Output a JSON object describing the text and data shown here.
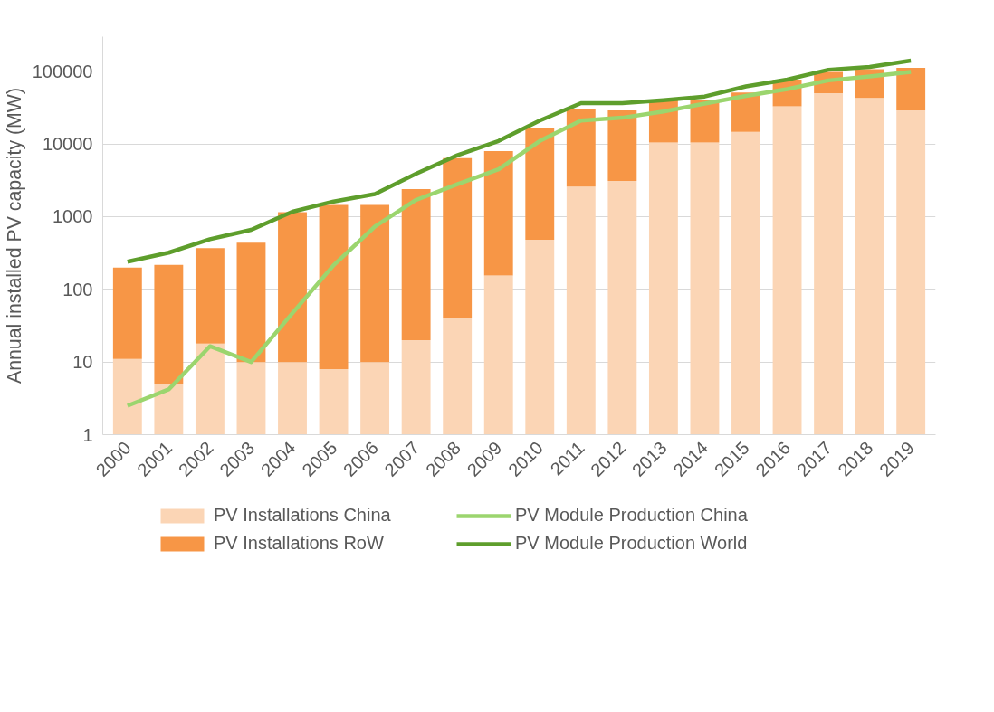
{
  "chart_data": {
    "type": "bar",
    "stacked": true,
    "log": true,
    "ylabel": "Annual installed PV capacity (MW)",
    "categories": [
      "2000",
      "2001",
      "2002",
      "2003",
      "2004",
      "2005",
      "2006",
      "2007",
      "2008",
      "2009",
      "2010",
      "2011",
      "2012",
      "2013",
      "2014",
      "2015",
      "2016",
      "2017",
      "2018",
      "2019"
    ],
    "series": [
      {
        "name": "PV Installations China",
        "color": "#fbd5b5",
        "values": [
          11,
          5,
          18,
          10,
          10,
          8,
          10,
          20,
          40,
          155,
          480,
          2600,
          3100,
          10500,
          10500,
          14700,
          33000,
          50000,
          43000,
          29000
        ]
      },
      {
        "name": "PV Installations RoW",
        "color": "#f79646",
        "values": [
          189,
          212,
          352,
          430,
          1140,
          1442,
          1440,
          2380,
          6360,
          7845,
          16320,
          27400,
          25900,
          29500,
          29500,
          36300,
          44000,
          48000,
          64000,
          83000
        ]
      },
      {
        "name": "PV Module Production China",
        "type": "line",
        "color": "#9bd56e",
        "values": [
          2.5,
          4.2,
          16.5,
          10,
          47,
          215,
          730,
          1700,
          2800,
          4500,
          11000,
          21000,
          23000,
          28000,
          36000,
          46000,
          57000,
          75000,
          85000,
          98000
        ]
      },
      {
        "name": "PV Module Production World",
        "type": "line",
        "color": "#5e9e2c",
        "values": [
          240,
          320,
          490,
          660,
          1170,
          1620,
          2050,
          3900,
          7000,
          11000,
          21000,
          36500,
          36500,
          40000,
          45000,
          62000,
          77000,
          105000,
          115000,
          140000
        ]
      }
    ],
    "ylim": [
      1,
      300000
    ],
    "yticks": [
      1,
      10,
      100,
      1000,
      10000,
      100000
    ],
    "grid": "y",
    "legend": "bottom"
  }
}
